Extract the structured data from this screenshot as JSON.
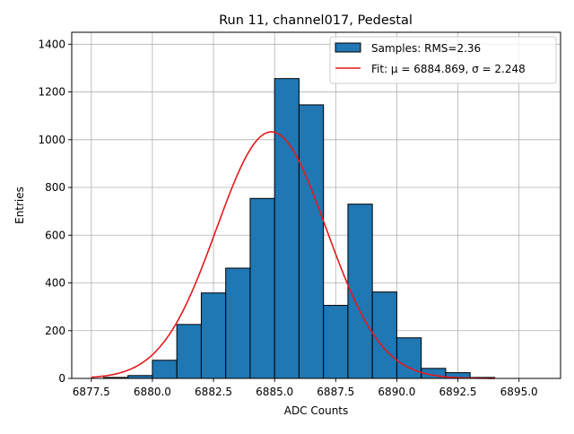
{
  "chart_data": {
    "type": "bar",
    "title": "Run 11, channel017, Pedestal",
    "xlabel": "ADC Counts",
    "ylabel": "Entries",
    "xlim": [
      6876.7,
      6896.7
    ],
    "ylim": [
      0,
      1450
    ],
    "xticks": [
      6877.5,
      6880.0,
      6882.5,
      6885.0,
      6887.5,
      6890.0,
      6892.5,
      6895.0
    ],
    "xtick_labels": [
      "6877.5",
      "6880.0",
      "6882.5",
      "6885.0",
      "6887.5",
      "6890.0",
      "6892.5",
      "6895.0"
    ],
    "yticks": [
      0,
      200,
      400,
      600,
      800,
      1000,
      1200,
      1400
    ],
    "ytick_labels": [
      "0",
      "200",
      "400",
      "600",
      "800",
      "1000",
      "1200",
      "1400"
    ],
    "grid": true,
    "bins": {
      "edges": [
        6877.0,
        6878.0,
        6879.0,
        6880.0,
        6881.0,
        6882.0,
        6883.0,
        6884.0,
        6885.0,
        6886.0,
        6887.0,
        6888.0,
        6889.0,
        6890.0,
        6891.0,
        6892.0,
        6893.0,
        6894.0,
        6895.0,
        6896.0
      ],
      "counts": [
        0,
        4,
        12,
        76,
        226,
        358,
        462,
        754,
        1256,
        1146,
        306,
        730,
        362,
        170,
        42,
        24,
        4,
        0,
        0
      ],
      "color": "#1f77b4",
      "edgecolor": "#000000",
      "legend_label": "Samples: RMS=2.36"
    },
    "fit": {
      "type": "gaussian",
      "mu": 6884.869,
      "sigma": 2.248,
      "amplitude": 1033,
      "x_range": [
        6877.5,
        6894.0
      ],
      "color": "#e41a1c",
      "legend_label": "Fit: μ = 6884.869, σ = 2.248"
    },
    "legend": {
      "position": "top-right",
      "entries": [
        "Samples: RMS=2.36",
        "Fit: μ = 6884.869, σ = 2.248"
      ]
    }
  }
}
